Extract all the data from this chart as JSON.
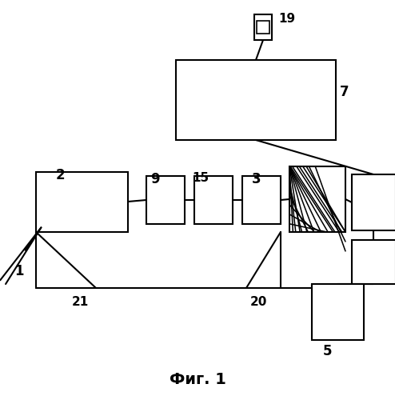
{
  "title": "Фиг. 1",
  "bg": "#ffffff",
  "lc": "#000000",
  "lw": 1.5,
  "figw": 4.94,
  "figh": 5.0,
  "dpi": 100
}
